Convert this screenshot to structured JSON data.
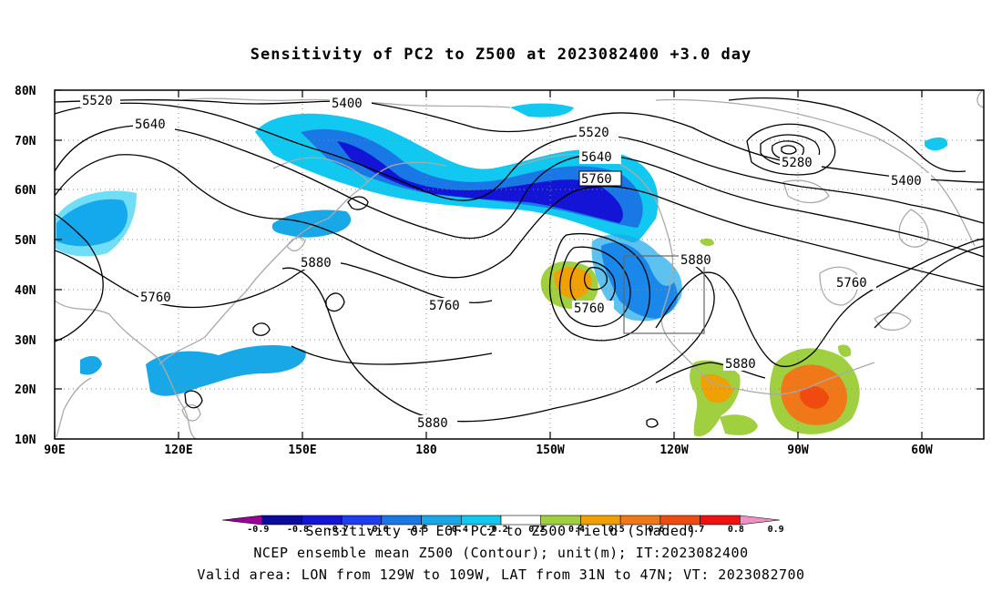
{
  "title": "Sensitivity of PC2 to Z500 at 2023082400 +3.0 day",
  "map": {
    "lat_ticks": [
      "80N",
      "70N",
      "60N",
      "50N",
      "40N",
      "30N",
      "20N",
      "10N"
    ],
    "lon_ticks": [
      "90E",
      "120E",
      "150E",
      "180",
      "150W",
      "120W",
      "90W",
      "60W"
    ],
    "lon_range": [
      90,
      315
    ],
    "lat_range": [
      10,
      80
    ]
  },
  "contours": {
    "unit": "m",
    "labels": [
      "5520",
      "5400",
      "5640",
      "5520",
      "5640",
      "5760",
      "5280",
      "5400",
      "5880",
      "5760",
      "5760",
      "5880",
      "5760",
      "5760",
      "5880",
      "5880"
    ]
  },
  "valid_box": {
    "lon": [
      -129,
      -109
    ],
    "lat": [
      31,
      47
    ]
  },
  "colorbar": {
    "colors": [
      "#9a0099",
      "#0a0a9c",
      "#1414d6",
      "#1e3cf0",
      "#1a78e6",
      "#18a8e8",
      "#10c8f0",
      "#ffffff",
      "#a0d040",
      "#f0a000",
      "#f07818",
      "#f04a10",
      "#f01010",
      "#f090c0"
    ],
    "ticks": [
      "-0.9",
      "-0.8",
      "-0.7",
      "-0.6",
      "-0.5",
      "-0.4",
      "-0.2",
      "0.2",
      "0.4",
      "0.5",
      "0.6",
      "0.7",
      "0.8",
      "0.9"
    ]
  },
  "footer": {
    "line1": "Sensitivity of EOF PC2 to Z500 field (Shaded)",
    "line2": "NCEP ensemble mean Z500 (Contour); unit(m); IT:2023082400",
    "line3": "Valid area: LON from 129W to 109W, LAT from 31N to 47N; VT: 2023082700"
  }
}
